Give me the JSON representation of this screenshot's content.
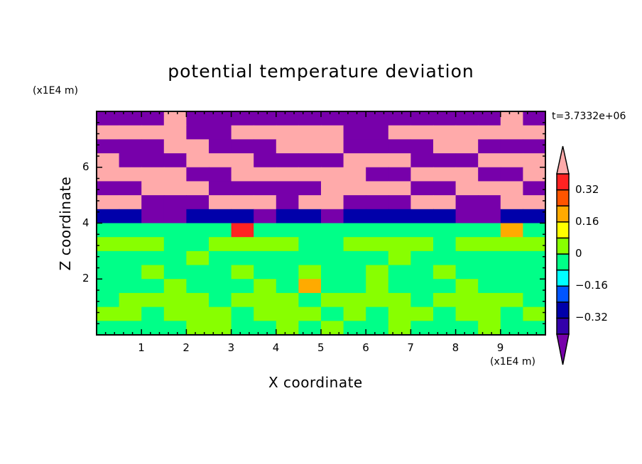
{
  "chart_data": {
    "type": "heatmap",
    "title": "potential temperature deviation",
    "xlabel": "X coordinate",
    "ylabel": "Z coordinate",
    "x_unit": "(x1E4 m)",
    "y_unit": "(x1E4 m)",
    "time_label": "t=3.7332e+06",
    "xlim": [
      0,
      10
    ],
    "ylim": [
      0,
      8
    ],
    "xticks": [
      "1",
      "2",
      "3",
      "4",
      "5",
      "6",
      "7",
      "8",
      "9"
    ],
    "xtick_values": [
      1,
      2,
      3,
      4,
      5,
      6,
      7,
      8,
      9
    ],
    "yticks": [
      "2",
      "4",
      "6"
    ],
    "ytick_values": [
      2,
      4,
      6
    ],
    "colorbar": {
      "levels": [
        -0.4,
        -0.32,
        -0.24,
        -0.16,
        -0.08,
        0,
        0.08,
        0.16,
        0.24,
        0.32,
        0.4
      ],
      "labels": [
        "0.32",
        "0.16",
        "0",
        "−0.16",
        "−0.32"
      ],
      "label_values": [
        0.32,
        0.16,
        0,
        -0.16,
        -0.32
      ],
      "colors": [
        "#3300aa",
        "#0000aa",
        "#0055ff",
        "#00ffff",
        "#00ff88",
        "#88ff00",
        "#ffff00",
        "#ffaa00",
        "#ff5500",
        "#ff2222"
      ],
      "under_color": "#7700aa",
      "over_color": "#ffaaaa",
      "extend": "both"
    },
    "grid_rows_top_to_bottom": [
      [
        -0.45,
        -0.45,
        -0.45,
        0.45,
        -0.45,
        -0.45,
        -0.45,
        -0.45,
        -0.45,
        -0.45,
        -0.45,
        -0.45,
        -0.45,
        -0.45,
        -0.45,
        -0.45,
        -0.45,
        -0.45,
        0.45,
        -0.45
      ],
      [
        0.45,
        0.45,
        0.45,
        0.45,
        -0.45,
        -0.45,
        0.45,
        0.45,
        0.45,
        0.45,
        0.45,
        -0.45,
        -0.45,
        0.45,
        0.45,
        0.45,
        0.45,
        0.45,
        0.45,
        0.45
      ],
      [
        -0.45,
        -0.45,
        -0.45,
        0.45,
        0.45,
        -0.45,
        -0.45,
        -0.45,
        0.45,
        0.45,
        0.45,
        -0.45,
        -0.45,
        -0.45,
        -0.45,
        0.45,
        0.45,
        -0.45,
        -0.45,
        -0.45
      ],
      [
        0.45,
        -0.45,
        -0.45,
        -0.45,
        0.45,
        0.45,
        0.45,
        -0.45,
        -0.45,
        -0.45,
        -0.45,
        0.45,
        0.45,
        0.45,
        -0.45,
        -0.45,
        -0.45,
        0.45,
        0.45,
        0.45
      ],
      [
        0.45,
        0.45,
        0.45,
        0.45,
        -0.45,
        -0.45,
        0.45,
        0.45,
        0.45,
        0.45,
        0.45,
        0.45,
        -0.45,
        -0.45,
        0.45,
        0.45,
        0.45,
        -0.45,
        -0.45,
        0.45
      ],
      [
        -0.45,
        -0.45,
        0.45,
        0.45,
        0.45,
        -0.45,
        -0.45,
        -0.45,
        -0.45,
        -0.45,
        0.45,
        0.45,
        0.45,
        0.45,
        -0.45,
        -0.45,
        0.45,
        0.45,
        0.45,
        -0.45
      ],
      [
        0.45,
        0.45,
        -0.45,
        -0.45,
        -0.45,
        0.45,
        0.45,
        0.45,
        -0.45,
        0.45,
        0.45,
        -0.45,
        -0.45,
        -0.45,
        0.45,
        0.45,
        -0.45,
        -0.45,
        0.45,
        0.45
      ],
      [
        -0.28,
        -0.28,
        -0.45,
        -0.45,
        -0.28,
        -0.28,
        -0.28,
        -0.45,
        -0.28,
        -0.28,
        -0.45,
        -0.28,
        -0.28,
        -0.28,
        -0.28,
        -0.28,
        -0.45,
        -0.45,
        -0.28,
        -0.28
      ],
      [
        -0.04,
        -0.04,
        -0.04,
        -0.04,
        -0.04,
        -0.04,
        0.36,
        -0.04,
        -0.04,
        -0.04,
        -0.04,
        -0.04,
        -0.04,
        -0.04,
        -0.04,
        -0.04,
        -0.04,
        -0.04,
        0.2,
        -0.04
      ],
      [
        0.04,
        0.04,
        0.04,
        -0.04,
        -0.04,
        0.04,
        0.04,
        0.04,
        0.04,
        -0.04,
        -0.04,
        0.04,
        0.04,
        0.04,
        0.04,
        -0.04,
        0.04,
        0.04,
        0.04,
        0.04
      ],
      [
        -0.04,
        -0.04,
        -0.04,
        -0.04,
        0.04,
        -0.04,
        -0.04,
        -0.04,
        -0.04,
        -0.04,
        -0.04,
        -0.04,
        -0.04,
        0.04,
        -0.04,
        -0.04,
        -0.04,
        -0.04,
        -0.04,
        -0.04
      ],
      [
        -0.04,
        -0.04,
        0.04,
        -0.04,
        -0.04,
        -0.04,
        0.04,
        -0.04,
        -0.04,
        0.04,
        -0.04,
        -0.04,
        0.04,
        -0.04,
        -0.04,
        0.04,
        -0.04,
        -0.04,
        -0.04,
        -0.04
      ],
      [
        -0.04,
        -0.04,
        -0.04,
        0.04,
        -0.04,
        -0.04,
        -0.04,
        0.04,
        -0.04,
        0.2,
        -0.04,
        -0.04,
        0.04,
        -0.04,
        -0.04,
        -0.04,
        0.04,
        -0.04,
        -0.04,
        -0.04
      ],
      [
        -0.04,
        0.04,
        0.04,
        0.04,
        0.04,
        -0.04,
        0.04,
        0.04,
        0.04,
        -0.04,
        0.04,
        0.04,
        0.04,
        0.04,
        -0.04,
        0.04,
        0.04,
        0.04,
        0.04,
        -0.04
      ],
      [
        0.04,
        0.04,
        -0.04,
        0.04,
        0.04,
        0.04,
        -0.04,
        0.04,
        0.04,
        0.04,
        -0.04,
        0.04,
        -0.04,
        0.04,
        0.04,
        -0.04,
        0.04,
        0.04,
        -0.04,
        0.04
      ],
      [
        -0.04,
        -0.04,
        -0.04,
        -0.04,
        0.04,
        0.04,
        -0.04,
        -0.04,
        0.04,
        -0.04,
        0.04,
        -0.04,
        -0.04,
        0.04,
        -0.04,
        -0.04,
        -0.04,
        0.04,
        -0.04,
        -0.04
      ]
    ]
  }
}
